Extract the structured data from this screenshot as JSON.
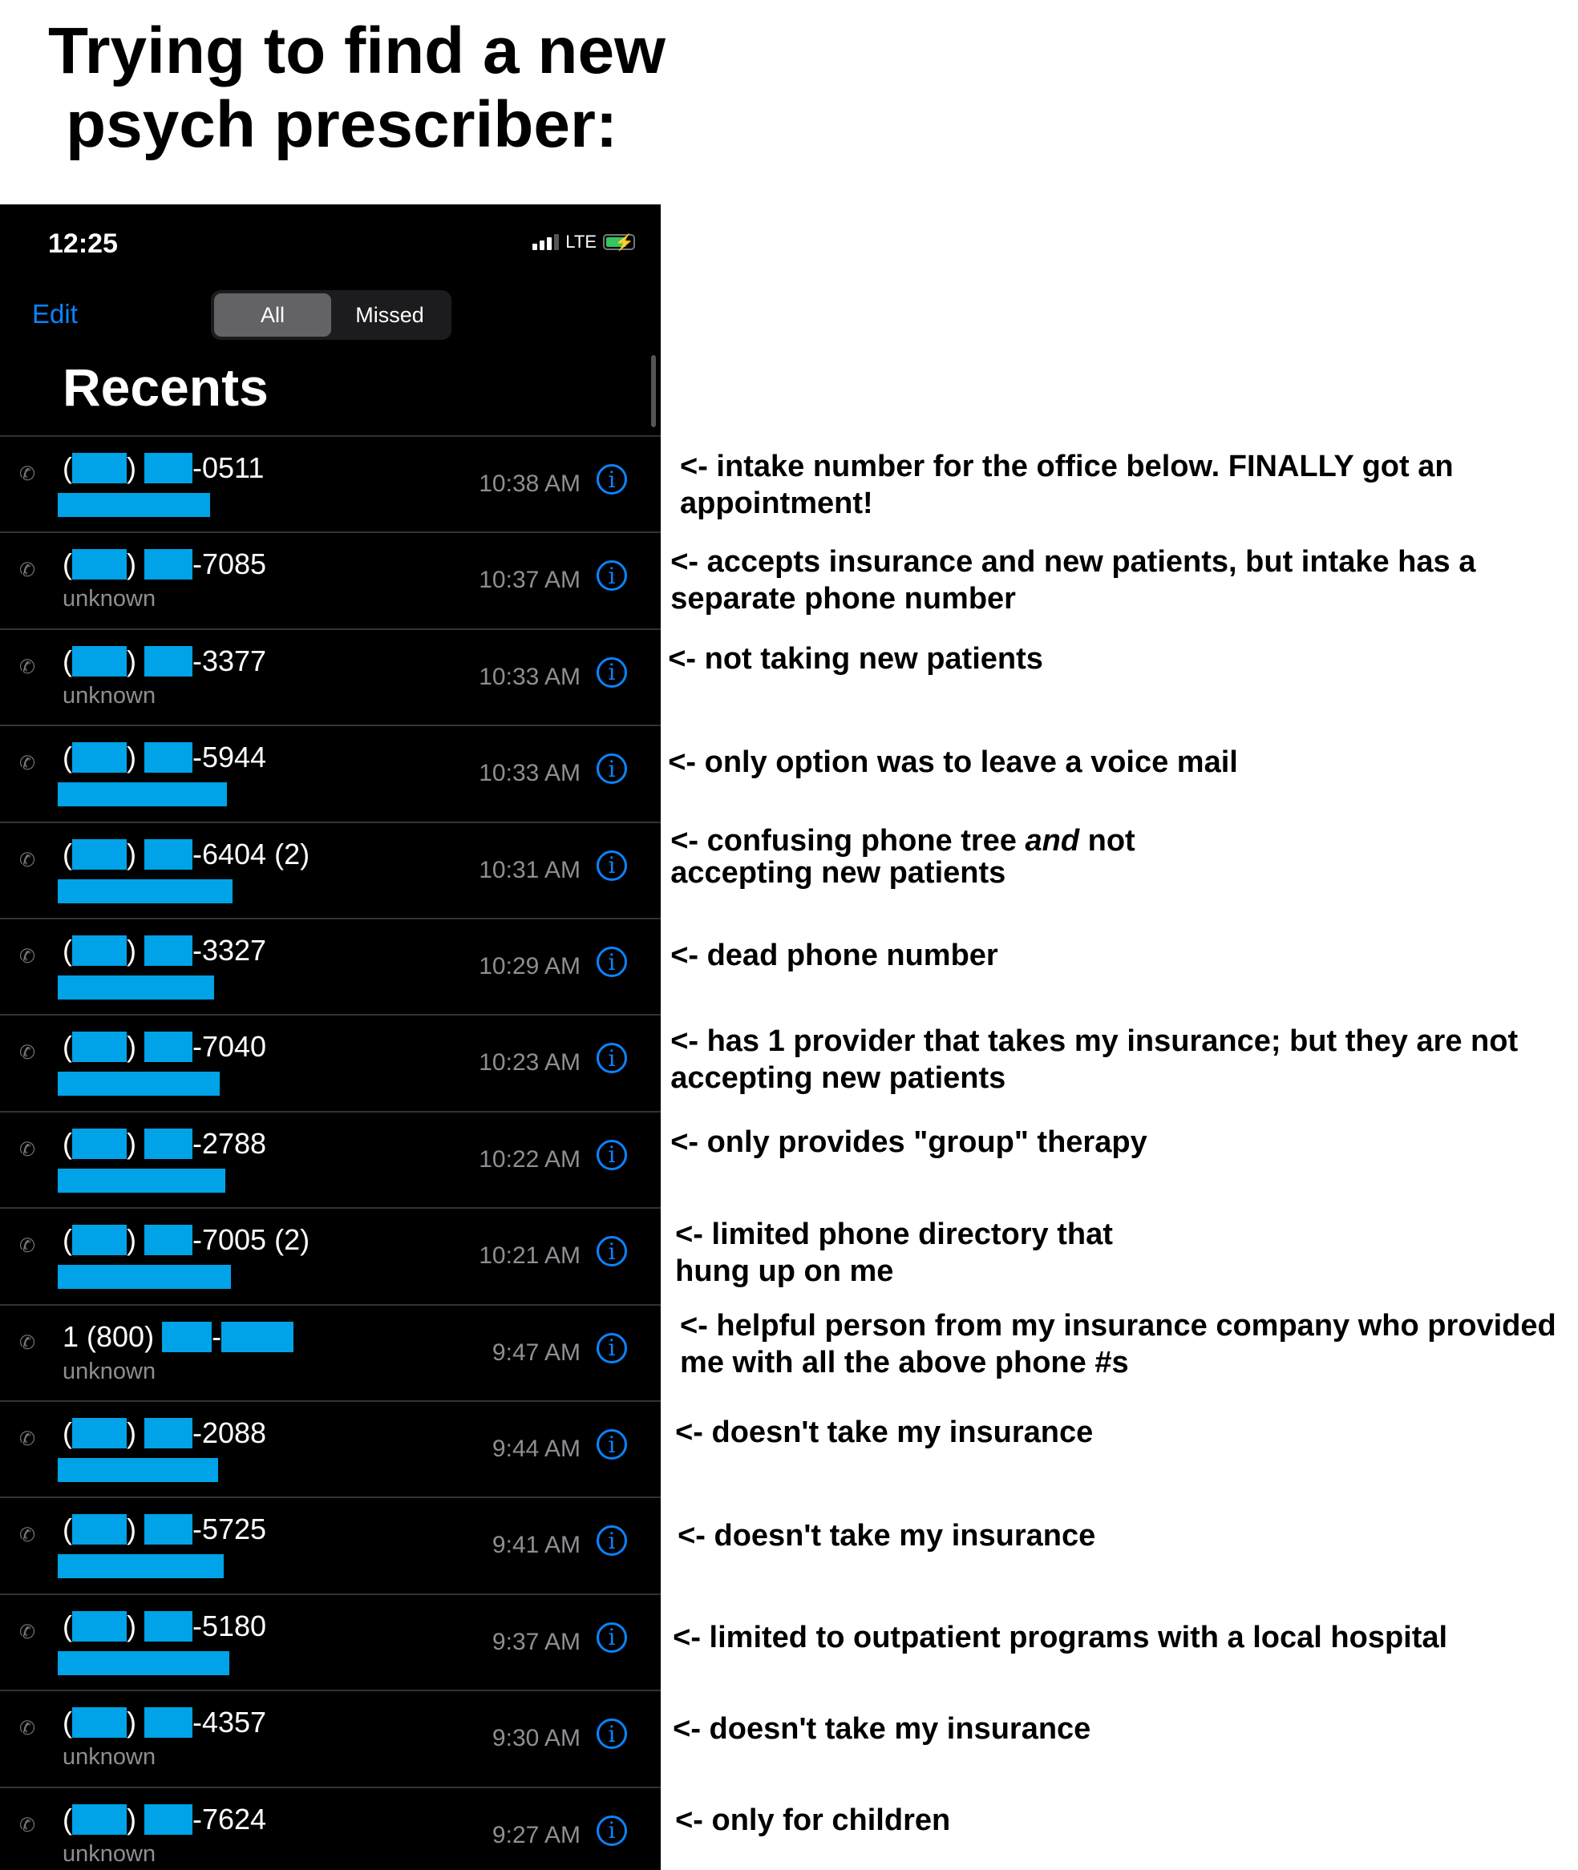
{
  "title": {
    "line1": "Trying to find a new",
    "line2": "psych prescriber:"
  },
  "status_bar": {
    "time": "12:25",
    "network": "LTE",
    "signal_bars": 3,
    "battery_charging": true
  },
  "nav": {
    "edit": "Edit",
    "segments": [
      "All",
      "Missed"
    ],
    "selected_segment": "All"
  },
  "header": {
    "title": "Recents"
  },
  "colors": {
    "accent": "#0a84ff",
    "redaction": "#00a2e8",
    "background": "#000000"
  },
  "rows": [
    {
      "prefix": "",
      "suffix": "-0511",
      "sub": "",
      "time": "10:38 AM",
      "note": "<- intake number for the office below. FINALLY got an appointment!"
    },
    {
      "prefix": "",
      "suffix": "-7085",
      "sub": "unknown",
      "time": "10:37 AM",
      "note": "<- accepts insurance and new patients, but intake has a separate phone number"
    },
    {
      "prefix": "",
      "suffix": "-3377",
      "sub": "unknown",
      "time": "10:33 AM",
      "note": "<- not taking new patients"
    },
    {
      "prefix": "",
      "suffix": "-5944",
      "sub": "",
      "time": "10:33 AM",
      "note": "<- only option was to leave a voice mail"
    },
    {
      "prefix": "",
      "suffix": "-6404 (2)",
      "sub": "",
      "time": "10:31 AM",
      "note_a": "<- confusing phone tree ",
      "note_em": "and",
      "note_b": " not accepting new patients"
    },
    {
      "prefix": "",
      "suffix": "-3327",
      "sub": "",
      "time": "10:29 AM",
      "note": "<- dead phone number"
    },
    {
      "prefix": "",
      "suffix": "-7040",
      "sub": "",
      "time": "10:23 AM",
      "note": "<- has 1 provider that takes my insurance; but they are not accepting new patients"
    },
    {
      "prefix": "",
      "suffix": "-2788",
      "sub": "",
      "time": "10:22 AM",
      "note": "<- only provides \"group\" therapy"
    },
    {
      "prefix": "",
      "suffix": "-7005 (2)",
      "sub": "",
      "time": "10:21 AM",
      "note": "<- limited phone directory that hung up on me"
    },
    {
      "prefix": "1 (800) ",
      "suffix": "",
      "sub": "unknown",
      "time": "9:47 AM",
      "note": "<- helpful person from my insurance company who provided me with all the above phone #s"
    },
    {
      "prefix": "",
      "suffix": "-2088",
      "sub": "",
      "time": "9:44 AM",
      "note": "<- doesn't take my insurance"
    },
    {
      "prefix": "",
      "suffix": "-5725",
      "sub": "",
      "time": "9:41 AM",
      "note": "<- doesn't take my insurance"
    },
    {
      "prefix": "",
      "suffix": "-5180",
      "sub": "",
      "time": "9:37 AM",
      "note": "<- limited to outpatient programs with a local hospital"
    },
    {
      "prefix": "",
      "suffix": "-4357",
      "sub": "unknown",
      "time": "9:30 AM",
      "note": "<- doesn't take my insurance"
    },
    {
      "prefix": "",
      "suffix": "-7624",
      "sub": "unknown",
      "time": "9:27 AM",
      "note": "<- only for children"
    }
  ]
}
